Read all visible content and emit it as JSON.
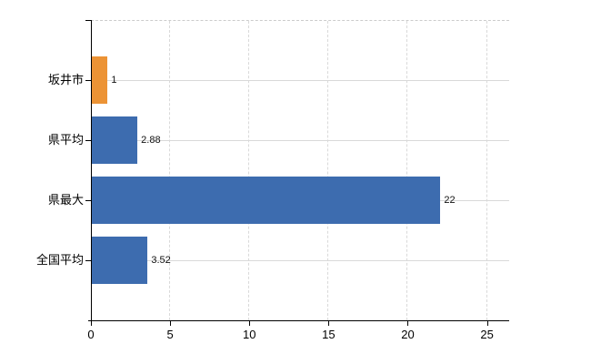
{
  "chart_data": {
    "type": "bar",
    "orientation": "horizontal",
    "title": "",
    "xlabel": "",
    "ylabel": "",
    "categories": [
      "坂井市",
      "県平均",
      "県最大",
      "全国平均"
    ],
    "values": [
      1,
      2.88,
      22,
      3.52
    ],
    "value_labels": [
      "1",
      "2.88",
      "22",
      "3.52"
    ],
    "bar_colors": [
      "#EC9335",
      "#3D6CAF",
      "#3D6CAF",
      "#3D6CAF"
    ],
    "x_ticks": [
      0,
      5,
      10,
      15,
      20,
      25
    ],
    "x_tick_labels": [
      "0",
      "5",
      "10",
      "15",
      "20",
      "25"
    ],
    "xlim": [
      0,
      26.4
    ],
    "grid": true,
    "legend": false,
    "background_color": "#FFFFFF",
    "axis_color": "#000000",
    "gridline_color": "#D9D9D9",
    "label_color": "#000000"
  }
}
